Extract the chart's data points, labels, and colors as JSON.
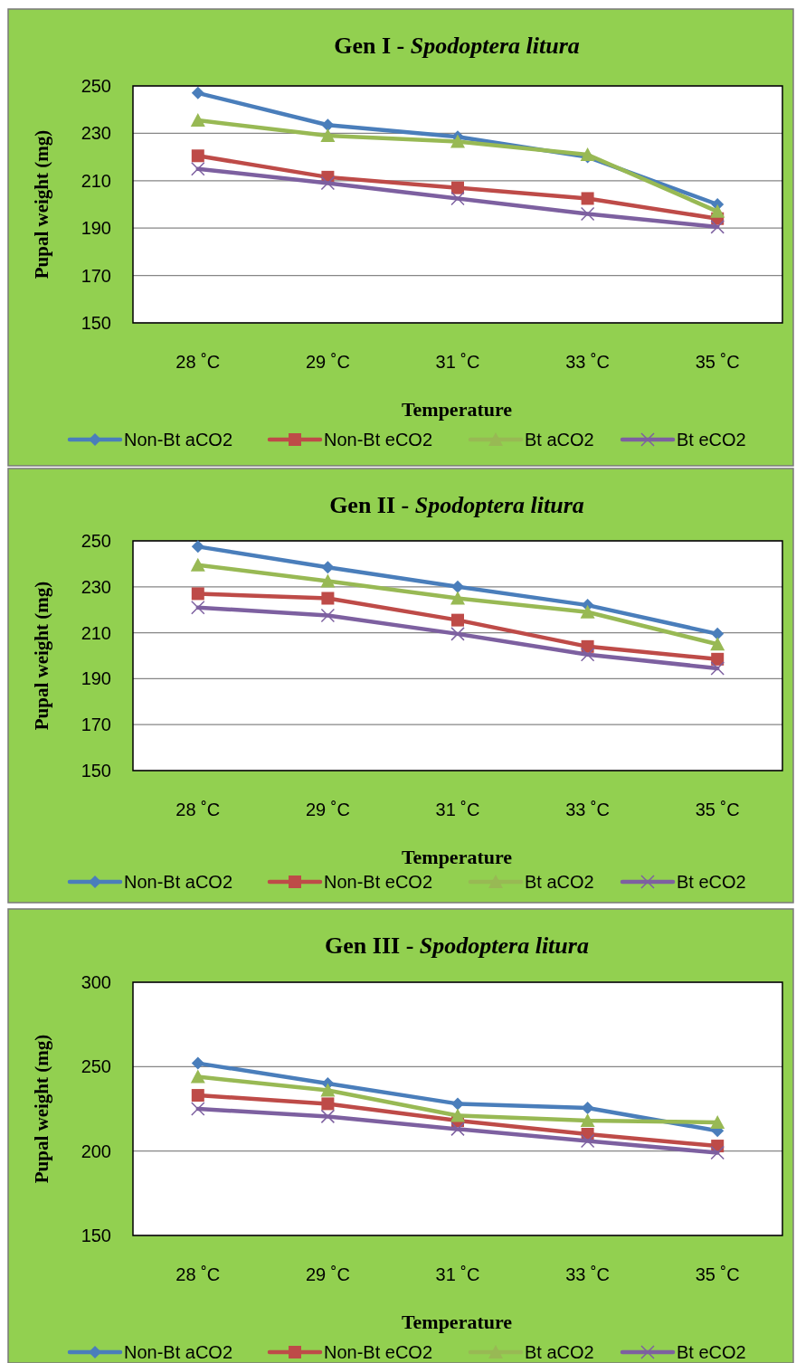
{
  "chart_data": [
    {
      "type": "line",
      "title": "Gen I - Spodoptera litura",
      "xlabel": "Temperature",
      "ylabel": "Pupal weight (mg)",
      "categories": [
        "28 ˚C",
        "29 ˚C",
        "31 ˚C",
        "33 ˚C",
        "35 ˚C"
      ],
      "ylim": [
        150,
        250
      ],
      "yticks": [
        150,
        170,
        190,
        210,
        230,
        250
      ],
      "grid": "y",
      "legend": "bottom",
      "series": [
        {
          "name": "Non-Bt aCO2",
          "color": "#4a7ebb",
          "marker": "diamond",
          "values": [
            247,
            233.5,
            228.5,
            220,
            200
          ]
        },
        {
          "name": "Non-Bt eCO2",
          "color": "#be4b48",
          "marker": "square",
          "values": [
            220.5,
            211.5,
            207,
            202.5,
            194
          ]
        },
        {
          "name": "Bt aCO2",
          "color": "#98b954",
          "marker": "triangle",
          "values": [
            235.5,
            229,
            226.5,
            221,
            197
          ]
        },
        {
          "name": "Bt eCO2",
          "color": "#7d60a0",
          "marker": "cross",
          "values": [
            215,
            209,
            202.5,
            196,
            190.5
          ]
        }
      ]
    },
    {
      "type": "line",
      "title": "Gen II - Spodoptera litura",
      "xlabel": "Temperature",
      "ylabel": "Pupal weight (mg)",
      "categories": [
        "28 ˚C",
        "29 ˚C",
        "31 ˚C",
        "33 ˚C",
        "35 ˚C"
      ],
      "ylim": [
        150,
        250
      ],
      "yticks": [
        150,
        170,
        190,
        210,
        230,
        250
      ],
      "grid": "y",
      "legend": "bottom",
      "series": [
        {
          "name": "Non-Bt aCO2",
          "color": "#4a7ebb",
          "marker": "diamond",
          "values": [
            247.5,
            238.5,
            230,
            222,
            209.5
          ]
        },
        {
          "name": "Non-Bt eCO2",
          "color": "#be4b48",
          "marker": "square",
          "values": [
            227,
            225,
            215.5,
            204,
            198.5
          ]
        },
        {
          "name": "Bt aCO2",
          "color": "#98b954",
          "marker": "triangle",
          "values": [
            239.5,
            232.5,
            225,
            219,
            205
          ]
        },
        {
          "name": "Bt eCO2",
          "color": "#7d60a0",
          "marker": "cross",
          "values": [
            221,
            217.5,
            209.5,
            200.5,
            194.5
          ]
        }
      ]
    },
    {
      "type": "line",
      "title": "Gen III - Spodoptera litura",
      "xlabel": "Temperature",
      "ylabel": "Pupal weight (mg)",
      "categories": [
        "28 ˚C",
        "29 ˚C",
        "31 ˚C",
        "33 ˚C",
        "35 ˚C"
      ],
      "ylim": [
        150,
        300
      ],
      "yticks": [
        150,
        200,
        250,
        300
      ],
      "grid": "y",
      "legend": "bottom",
      "series": [
        {
          "name": "Non-Bt aCO2",
          "color": "#4a7ebb",
          "marker": "diamond",
          "values": [
            252,
            240,
            228,
            225.5,
            212
          ]
        },
        {
          "name": "Non-Bt eCO2",
          "color": "#be4b48",
          "marker": "square",
          "values": [
            233,
            228,
            218,
            210,
            203
          ]
        },
        {
          "name": "Bt aCO2",
          "color": "#98b954",
          "marker": "triangle",
          "values": [
            244,
            236,
            221,
            218,
            217
          ]
        },
        {
          "name": "Bt eCO2",
          "color": "#7d60a0",
          "marker": "cross",
          "values": [
            225,
            220.5,
            213,
            206,
            199
          ]
        }
      ]
    }
  ]
}
